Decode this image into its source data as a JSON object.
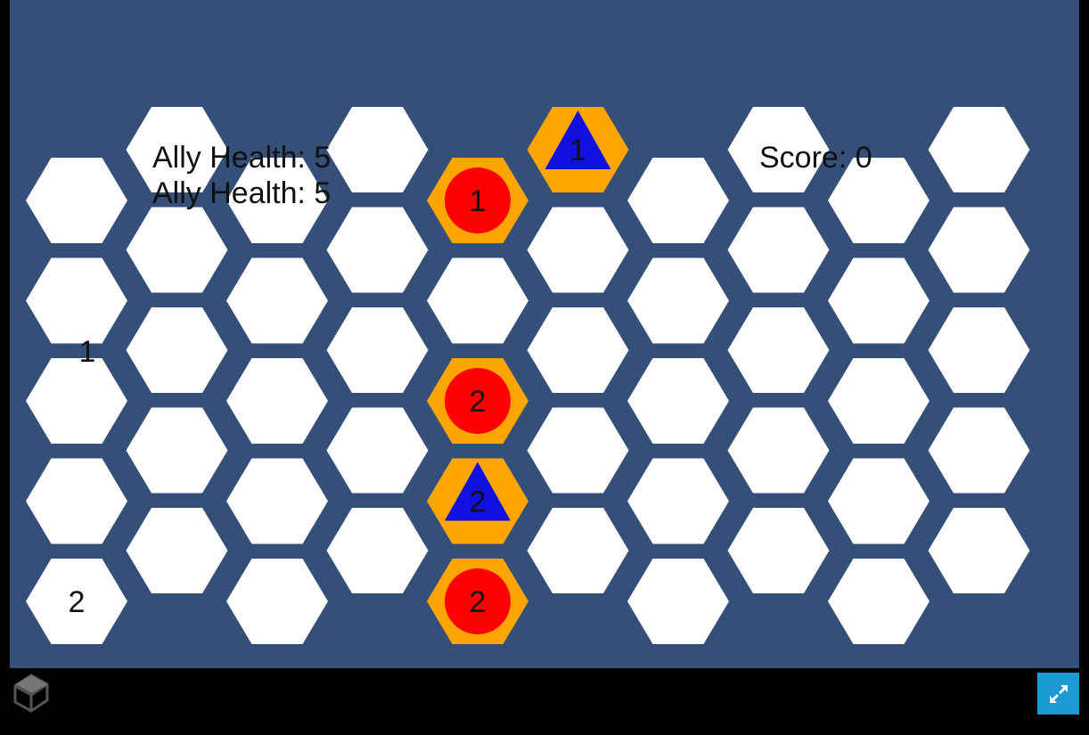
{
  "hud": {
    "ally_health_1": "Ally Health: 5",
    "ally_health_2": "Ally Health: 5",
    "score": "Score: 0"
  },
  "board": {
    "columns": 10,
    "tile_color": "#ffffff",
    "highlight_color": "#ffa500",
    "background_color": "#344f78",
    "column_labels": [
      {
        "col": 0,
        "row": 1.5,
        "text": "1"
      },
      {
        "col": 0,
        "row": 4,
        "text": "2"
      }
    ],
    "units": [
      {
        "col": 5,
        "row": -0.5,
        "kind": "ally-triangle",
        "label": "1"
      },
      {
        "col": 4,
        "row": 0,
        "kind": "enemy-circle",
        "label": "1"
      },
      {
        "col": 4,
        "row": 2,
        "kind": "enemy-circle",
        "label": "2"
      },
      {
        "col": 4,
        "row": 3,
        "kind": "ally-triangle",
        "label": "2"
      },
      {
        "col": 4,
        "row": 4,
        "kind": "enemy-circle",
        "label": "2"
      }
    ],
    "ally_color": "#1010e0",
    "enemy_color": "#ff0000"
  },
  "footer": {
    "logo_icon": "unity-logo-icon",
    "fullscreen_icon": "fullscreen-expand-icon",
    "fullscreen_color": "#1b9bd1"
  }
}
